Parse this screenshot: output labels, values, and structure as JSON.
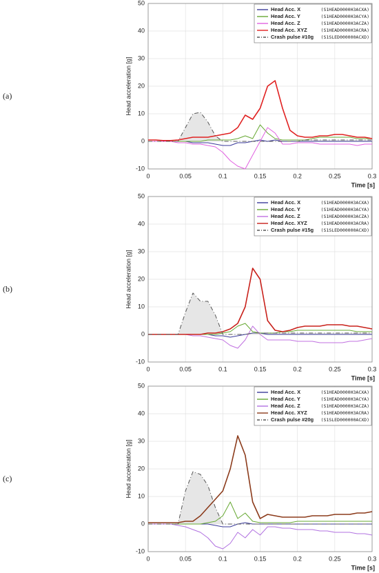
{
  "chart_data": [
    {
      "type": "line",
      "panel_label": "(a)",
      "ylabel": "Head acceleration [g]",
      "xlabel": "Time [s]",
      "xlim": [
        0,
        0.3
      ],
      "xticks": [
        0,
        0.05,
        0.1,
        0.15,
        0.2,
        0.25,
        0.3
      ],
      "ylim": [
        -10,
        50
      ],
      "yticks": [
        -10,
        0,
        10,
        20,
        30,
        40,
        50
      ],
      "grid": true,
      "legend": "upper right",
      "x": [
        0,
        0.01,
        0.02,
        0.03,
        0.04,
        0.05,
        0.06,
        0.07,
        0.08,
        0.09,
        0.1,
        0.11,
        0.12,
        0.13,
        0.14,
        0.15,
        0.16,
        0.17,
        0.18,
        0.19,
        0.2,
        0.21,
        0.22,
        0.23,
        0.24,
        0.25,
        0.26,
        0.27,
        0.28,
        0.29,
        0.3
      ],
      "series": [
        {
          "name": "Head Acc. X",
          "code": "(S1HEAD0000H3ACXA)",
          "color": "#3a3a9a",
          "values": [
            0,
            0,
            0,
            0,
            0,
            0,
            -0.5,
            -0.5,
            -0.5,
            -1,
            -1.5,
            -1.5,
            -0.5,
            -0.5,
            0,
            0.5,
            0,
            0.5,
            0,
            0,
            0,
            0,
            0,
            0,
            0,
            0,
            0,
            0,
            0,
            0,
            0
          ]
        },
        {
          "name": "Head Acc. Y",
          "code": "(S1HEAD0000H3ACYA)",
          "color": "#66a832",
          "values": [
            0,
            0,
            0,
            0,
            0,
            0,
            0,
            0,
            0.5,
            0.5,
            0.5,
            0.5,
            1,
            2,
            1,
            6,
            3,
            1,
            0.5,
            0.5,
            0.5,
            0.5,
            1,
            1.5,
            1.5,
            1.5,
            1.5,
            1.5,
            1,
            1,
            1
          ]
        },
        {
          "name": "Head Acc. Z",
          "code": "(S1HEAD0000H3ACZA)",
          "color": "#e060e0",
          "values": [
            0,
            0,
            0,
            0,
            -0.5,
            -0.5,
            -1,
            -1,
            -1.5,
            -2,
            -4,
            -7,
            -9,
            -10,
            -5,
            0,
            5,
            3,
            -1,
            -1,
            -0.5,
            -0.5,
            -0.5,
            -1,
            -1,
            -1,
            -1,
            -1,
            -1.5,
            -1,
            -1
          ]
        },
        {
          "name": "Head Acc. XYZ",
          "code": "(S1HEAD0000H3ACRA)",
          "color": "#e02020",
          "values": [
            0.5,
            0.5,
            0.3,
            0.3,
            0.5,
            1,
            1.5,
            1.5,
            1.5,
            2,
            2.5,
            3,
            5,
            9.5,
            8,
            12,
            20,
            22,
            12,
            4,
            2,
            1.5,
            1.5,
            2,
            2,
            2.5,
            2.5,
            2,
            1.5,
            1.5,
            1
          ]
        },
        {
          "name": "Crash pulse #10g",
          "code": "(S1SLED000000ACXD)",
          "color": "#555555",
          "dash": true,
          "area_fill": "#e6e6e6",
          "values": [
            0,
            0,
            0,
            0,
            0,
            5,
            10,
            10.5,
            7,
            2,
            0,
            0,
            0,
            0,
            0,
            0,
            0,
            0,
            0,
            0,
            0,
            0.5,
            0.5,
            0.5,
            0.5,
            0.5,
            0.5,
            0.5,
            0.5,
            0.5,
            0.5
          ]
        }
      ]
    },
    {
      "type": "line",
      "panel_label": "(b)",
      "ylabel": "Head acceleration [g]",
      "xlabel": "Time [s]",
      "xlim": [
        0,
        0.3
      ],
      "xticks": [
        0,
        0.05,
        0.1,
        0.15,
        0.2,
        0.25,
        0.3
      ],
      "ylim": [
        -10,
        50
      ],
      "yticks": [
        -10,
        0,
        10,
        20,
        30,
        40,
        50
      ],
      "grid": true,
      "legend": "upper right",
      "x": [
        0,
        0.01,
        0.02,
        0.03,
        0.04,
        0.05,
        0.06,
        0.07,
        0.08,
        0.09,
        0.1,
        0.11,
        0.12,
        0.13,
        0.14,
        0.15,
        0.16,
        0.17,
        0.18,
        0.19,
        0.2,
        0.21,
        0.22,
        0.23,
        0.24,
        0.25,
        0.26,
        0.27,
        0.28,
        0.29,
        0.3
      ],
      "series": [
        {
          "name": "Head Acc. X",
          "code": "(S1HEAD0000H3ACXA)",
          "color": "#3a3a9a",
          "values": [
            0,
            0,
            0,
            0,
            0,
            0,
            0,
            0,
            0,
            -0.5,
            -0.5,
            -1,
            -0.5,
            0,
            0.5,
            0.5,
            0,
            0,
            0,
            0,
            0,
            0,
            0,
            0,
            0,
            0,
            0,
            0,
            0,
            0,
            0
          ]
        },
        {
          "name": "Head Acc. Y",
          "code": "(S1HEAD0000H3ACYA)",
          "color": "#66a832",
          "values": [
            0,
            0,
            0,
            0,
            0,
            0,
            0,
            0,
            0,
            0,
            0.5,
            1,
            3,
            4,
            1,
            0.5,
            0.5,
            0.5,
            1,
            1,
            1.5,
            1.5,
            1.5,
            1.5,
            1.5,
            1.5,
            1.5,
            1.5,
            1,
            1,
            1
          ]
        },
        {
          "name": "Head Acc. Z",
          "code": "(S1HEAD0000H3ACZA)",
          "color": "#c070e0",
          "values": [
            0,
            0,
            0,
            0,
            0,
            0,
            -0.5,
            -0.5,
            -1,
            -1.5,
            -2,
            -4,
            -5,
            -2,
            3,
            0,
            -2,
            -2,
            -2,
            -2,
            -2.5,
            -2.5,
            -2.5,
            -3,
            -3,
            -3,
            -3,
            -2.5,
            -2.5,
            -2,
            -1.5
          ]
        },
        {
          "name": "Head Acc. XYZ",
          "code": "(S1HEAD0000H3ACRA)",
          "color": "#c8201a",
          "values": [
            0,
            0,
            0,
            0,
            0,
            0,
            0,
            0,
            0.5,
            0.5,
            1,
            2,
            4,
            10,
            24,
            20,
            5,
            1.5,
            1,
            1.5,
            2.5,
            3,
            3,
            3,
            3.5,
            3.5,
            3.5,
            3,
            3,
            2.5,
            2
          ]
        },
        {
          "name": "Crash pulse #15g",
          "code": "(S1SLED000000ACXD)",
          "color": "#555555",
          "dash": true,
          "area_fill": "#e6e6e6",
          "values": [
            0,
            0,
            0,
            0,
            0,
            8,
            15,
            12,
            12,
            7,
            0,
            0,
            0,
            0,
            0.5,
            0.5,
            0.5,
            0.5,
            0.5,
            0.5,
            0.5,
            0.5,
            0.5,
            0.5,
            0.5,
            0.5,
            0.5,
            0.5,
            0.5,
            0.5,
            0.5
          ]
        }
      ]
    },
    {
      "type": "line",
      "panel_label": "(c)",
      "ylabel": "Head acceleration [g]",
      "xlabel": "Time [s]",
      "xlim": [
        0,
        0.3
      ],
      "xticks": [
        0,
        0.05,
        0.1,
        0.15,
        0.2,
        0.25,
        0.3
      ],
      "ylim": [
        -10,
        50
      ],
      "yticks": [
        -10,
        0,
        10,
        20,
        30,
        40,
        50
      ],
      "grid": true,
      "legend": "upper right",
      "x": [
        0,
        0.01,
        0.02,
        0.03,
        0.04,
        0.05,
        0.06,
        0.07,
        0.08,
        0.09,
        0.1,
        0.11,
        0.12,
        0.13,
        0.14,
        0.15,
        0.16,
        0.17,
        0.18,
        0.19,
        0.2,
        0.21,
        0.22,
        0.23,
        0.24,
        0.25,
        0.26,
        0.27,
        0.28,
        0.29,
        0.3
      ],
      "series": [
        {
          "name": "Head Acc. X",
          "code": "(S1HEAD0000H3ACXA)",
          "color": "#3a3a9a",
          "values": [
            0,
            0,
            0,
            0,
            0,
            0,
            0,
            0,
            0,
            -0.5,
            -1,
            -1,
            0,
            0.5,
            0,
            0,
            0,
            0,
            0,
            0,
            0,
            0,
            0,
            0,
            0,
            0,
            0,
            0,
            0,
            0,
            0
          ]
        },
        {
          "name": "Head Acc. Y",
          "code": "(S1HEAD0000H3ACYA)",
          "color": "#66a832",
          "values": [
            0,
            0,
            0,
            0,
            0,
            0,
            0,
            0,
            0.5,
            1,
            3,
            8,
            2,
            4,
            1,
            0.5,
            0.5,
            0.5,
            0.5,
            0.5,
            1,
            1,
            1,
            1,
            1,
            1,
            1,
            1,
            1,
            1,
            1
          ]
        },
        {
          "name": "Head Acc. Z",
          "code": "(S1HEAD0000H3ACZA)",
          "color": "#b070e0",
          "values": [
            0,
            0,
            0,
            0,
            -0.5,
            -1,
            -2,
            -3,
            -5,
            -8,
            -9,
            -7,
            -3,
            -5,
            -2,
            -4,
            -1,
            -1,
            -1.5,
            -1.5,
            -2,
            -2,
            -2,
            -2.5,
            -2.5,
            -3,
            -3,
            -3,
            -3.5,
            -3.5,
            -4
          ]
        },
        {
          "name": "Head Acc. XYZ",
          "code": "(S1HEAD0000H3ACRA)",
          "color": "#8b3a1a",
          "values": [
            0.5,
            0.5,
            0.5,
            0.5,
            0.5,
            1,
            1,
            3,
            6,
            9,
            12,
            20,
            32,
            25,
            8,
            2,
            3.5,
            3,
            2.5,
            2.5,
            2.5,
            2.5,
            3,
            3,
            3,
            3.5,
            3.5,
            3.5,
            4,
            4,
            4.5
          ]
        },
        {
          "name": "Crash pulse #20g",
          "code": "(S1SLED000000ACXD)",
          "color": "#555555",
          "dash": true,
          "area_fill": "#e6e6e6",
          "values": [
            0,
            0,
            0,
            0,
            0,
            12,
            19,
            18,
            14,
            6,
            0,
            0,
            0,
            0,
            0,
            0,
            0,
            0,
            0,
            0,
            0,
            0,
            0,
            0,
            0,
            0,
            0,
            0,
            0,
            0,
            0
          ]
        }
      ]
    }
  ]
}
